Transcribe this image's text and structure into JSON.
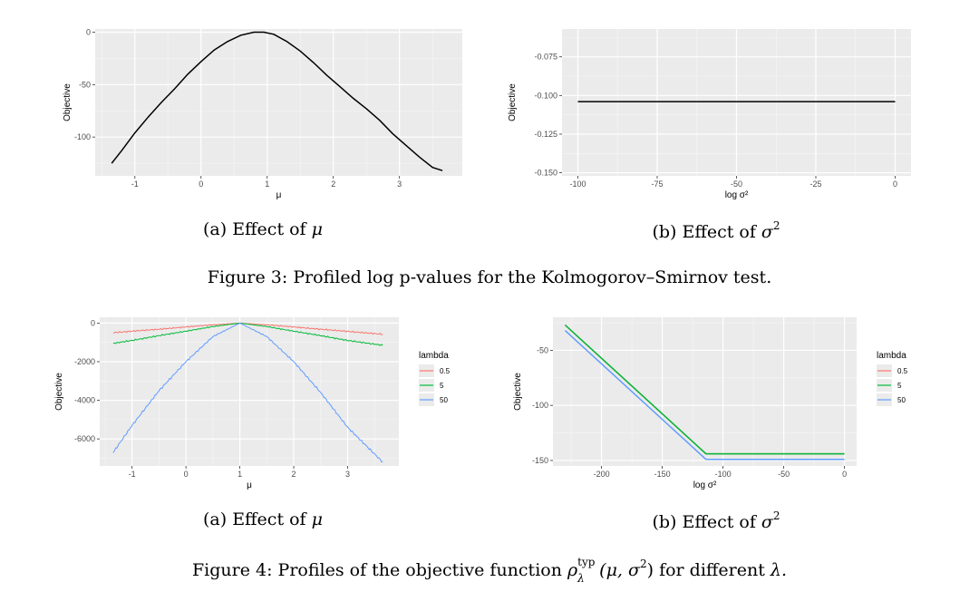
{
  "figures": [
    {
      "caption_prefix": "Figure 3:",
      "caption_text": "Profiled log p-values for the Kolmogorov–Smirnov test.",
      "subcaptions": [
        {
          "label": "(a) Effect of",
          "symbol": "μ"
        },
        {
          "label": "(b) Effect of",
          "symbol": "σ",
          "sup": "2"
        }
      ]
    },
    {
      "caption_prefix": "Figure 4:",
      "caption_before": "Profiles of the objective function",
      "caption_rho": "ρ",
      "caption_rho_sup": "typ",
      "caption_rho_sub": "λ",
      "caption_args": "(μ, σ",
      "caption_args_sup": "2",
      "caption_after": ") for different",
      "caption_lambda": "λ.",
      "subcaptions": [
        {
          "label": "(a) Effect of",
          "symbol": "μ"
        },
        {
          "label": "(b) Effect of",
          "symbol": "σ",
          "sup": "2"
        }
      ]
    }
  ],
  "chart_data": [
    {
      "type": "line",
      "xlabel": "μ",
      "ylabel": "Objective",
      "xlim": [
        -1.6,
        3.95
      ],
      "ylim": [
        -137,
        3
      ],
      "xticks": [
        -1,
        0,
        1,
        2,
        3
      ],
      "xtick_labels": [
        "-1",
        "0",
        "1",
        "2",
        "3"
      ],
      "yticks": [
        0,
        -50,
        -100
      ],
      "ytick_labels": [
        "0",
        "-50",
        "-100"
      ],
      "grid": true,
      "series": [
        {
          "color": "#000000",
          "x": [
            -1.35,
            -1.2,
            -1.0,
            -0.8,
            -0.6,
            -0.4,
            -0.2,
            0.0,
            0.2,
            0.4,
            0.6,
            0.8,
            0.95,
            1.1,
            1.3,
            1.5,
            1.7,
            1.9,
            2.1,
            2.3,
            2.5,
            2.7,
            2.9,
            3.1,
            3.3,
            3.5,
            3.65
          ],
          "y": [
            -125,
            -113,
            -96,
            -81,
            -67,
            -54,
            -40,
            -28,
            -17,
            -9,
            -3,
            0,
            0,
            -2,
            -9,
            -18,
            -29,
            -41,
            -52,
            -63,
            -73,
            -84,
            -97,
            -108,
            -119,
            -129,
            -132
          ]
        }
      ]
    },
    {
      "type": "line",
      "xlabel": "log σ²",
      "ylabel": "Objective",
      "xlim": [
        -105,
        5
      ],
      "ylim": [
        -0.152,
        -0.057
      ],
      "xticks": [
        -100,
        -75,
        -50,
        -25,
        0
      ],
      "xtick_labels": [
        "-100",
        "-75",
        "-50",
        "-25",
        "0"
      ],
      "yticks": [
        -0.075,
        -0.1,
        -0.125,
        -0.15
      ],
      "ytick_labels": [
        "-0.075",
        "-0.100",
        "-0.125",
        "-0.150"
      ],
      "grid": true,
      "series": [
        {
          "color": "#000000",
          "x": [
            -100,
            0
          ],
          "y": [
            -0.104,
            -0.104
          ]
        }
      ]
    },
    {
      "type": "line",
      "xlabel": "μ",
      "ylabel": "Objective",
      "xlim": [
        -1.6,
        3.95
      ],
      "ylim": [
        -7400,
        300
      ],
      "xticks": [
        -1,
        0,
        1,
        2,
        3
      ],
      "xtick_labels": [
        "-1",
        "0",
        "1",
        "2",
        "3"
      ],
      "yticks": [
        0,
        -2000,
        -4000,
        -6000
      ],
      "ytick_labels": [
        "0",
        "-2000",
        "-4000",
        "-6000"
      ],
      "grid": true,
      "legend": {
        "title": "lambda",
        "position": "right"
      },
      "series": [
        {
          "name": "0.5",
          "color": "#F8766D",
          "noise": 40,
          "x": [
            -1.35,
            -1.0,
            -0.5,
            0.0,
            0.5,
            1.0,
            1.5,
            2.0,
            2.5,
            3.0,
            3.65
          ],
          "y": [
            -500,
            -420,
            -320,
            -200,
            -90,
            0,
            -90,
            -200,
            -320,
            -430,
            -580
          ]
        },
        {
          "name": "5",
          "color": "#00BA38",
          "noise": 40,
          "x": [
            -1.35,
            -1.0,
            -0.5,
            0.0,
            0.5,
            1.0,
            1.5,
            2.0,
            2.5,
            3.0,
            3.65
          ],
          "y": [
            -1050,
            -900,
            -650,
            -420,
            -180,
            0,
            -180,
            -420,
            -650,
            -900,
            -1150
          ]
        },
        {
          "name": "50",
          "color": "#619CFF",
          "noise": 60,
          "x": [
            -1.35,
            -1.0,
            -0.5,
            0.0,
            0.5,
            1.0,
            1.5,
            2.0,
            2.5,
            3.0,
            3.65
          ],
          "y": [
            -6700,
            -5300,
            -3500,
            -2000,
            -700,
            0,
            -700,
            -2000,
            -3600,
            -5400,
            -7200
          ]
        }
      ]
    },
    {
      "type": "line",
      "xlabel": "log σ²",
      "ylabel": "Objective",
      "xlim": [
        -240,
        10
      ],
      "ylim": [
        -155,
        -20
      ],
      "xticks": [
        -200,
        -150,
        -100,
        -50,
        0
      ],
      "xtick_labels": [
        "-200",
        "-150",
        "-100",
        "-50",
        "0"
      ],
      "yticks": [
        -50,
        -100,
        -150
      ],
      "ytick_labels": [
        "-50",
        "-100",
        "-150"
      ],
      "grid": true,
      "legend": {
        "title": "lambda",
        "position": "right"
      },
      "series": [
        {
          "name": "0.5",
          "color": "#F8766D",
          "x": [
            -230,
            -114,
            0
          ],
          "y": [
            -27,
            -144,
            -144
          ]
        },
        {
          "name": "5",
          "color": "#00BA38",
          "x": [
            -230,
            -114,
            0
          ],
          "y": [
            -27,
            -144,
            -144
          ]
        },
        {
          "name": "50",
          "color": "#619CFF",
          "x": [
            -230,
            -114,
            0
          ],
          "y": [
            -32,
            -149,
            -149
          ]
        }
      ]
    }
  ]
}
